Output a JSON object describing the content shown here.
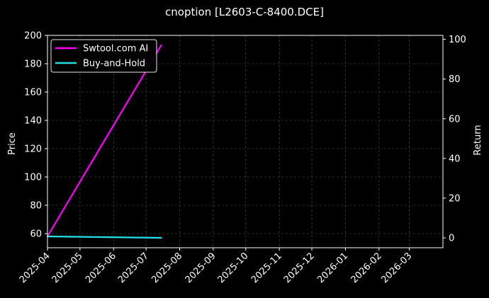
{
  "chart_data": {
    "type": "line",
    "title": "cnoption [L2603-C-8400.DCE]",
    "ylabel_left": "Price",
    "ylabel_right": "Return",
    "xlim": [
      "2025-04-01",
      "2026-04-01"
    ],
    "ylim_left": [
      50,
      200
    ],
    "ylim_right": [
      -5,
      102
    ],
    "x_ticks": [
      "2025-04",
      "2025-05",
      "2025-06",
      "2025-07",
      "2025-08",
      "2025-09",
      "2025-10",
      "2025-11",
      "2025-12",
      "2026-01",
      "2026-02",
      "2026-03"
    ],
    "y_ticks_left": [
      60,
      80,
      100,
      120,
      140,
      160,
      180,
      200
    ],
    "y_ticks_right": [
      0,
      20,
      40,
      60,
      80,
      100
    ],
    "grid": true,
    "legend_position": "top-left",
    "series": [
      {
        "name": "Swtool.com AI",
        "color": "#ff00ff",
        "axis": "left",
        "x": [
          "2025-04-01",
          "2025-07-15"
        ],
        "values": [
          58,
          193
        ]
      },
      {
        "name": "Buy-and-Hold",
        "color": "#22e0e6",
        "axis": "left",
        "x": [
          "2025-04-01",
          "2025-07-15"
        ],
        "values": [
          58,
          57
        ]
      }
    ]
  },
  "colors": {
    "background": "#000000",
    "text": "#ffffff",
    "grid": "#555555"
  }
}
